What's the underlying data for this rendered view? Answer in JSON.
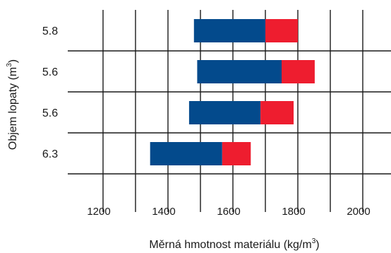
{
  "chart_data": {
    "type": "bar",
    "orientation": "horizontal",
    "stacked_range": true,
    "xlabel": "Měrná hmotnost materiálu (kg/m",
    "xlabel_sup": "3",
    "xlabel_suffix": ")",
    "ylabel": "Objem lopaty (m",
    "ylabel_sup": "3",
    "ylabel_suffix": ")",
    "xlim": [
      1100,
      2100
    ],
    "xticks": [
      1200,
      1400,
      1600,
      1800,
      2000
    ],
    "grid": true,
    "categories": [
      "5.8",
      "5.6",
      "5.6",
      "6.3"
    ],
    "series": [
      {
        "color": "#034a8c",
        "ranges": [
          [
            1480,
            1700
          ],
          [
            1490,
            1750
          ],
          [
            1465,
            1685
          ],
          [
            1345,
            1567
          ]
        ]
      },
      {
        "color": "#ee1d2f",
        "ranges": [
          [
            1700,
            1800
          ],
          [
            1750,
            1852
          ],
          [
            1685,
            1787
          ],
          [
            1567,
            1655
          ]
        ]
      }
    ]
  }
}
